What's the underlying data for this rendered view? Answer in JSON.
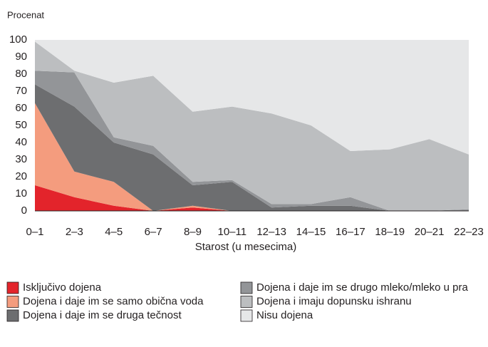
{
  "chart_data": {
    "type": "stacked_area",
    "ylabel": "Procenat",
    "xlabel": "Starost (u mesecima)",
    "categories": [
      "0–1",
      "2–3",
      "4–5",
      "6–7",
      "8–9",
      "10–11",
      "12–13",
      "14–15",
      "16–17",
      "18–19",
      "20–21",
      "22–23"
    ],
    "ylim": [
      0,
      100
    ],
    "yticks": [
      0,
      10,
      20,
      30,
      40,
      50,
      60,
      70,
      80,
      90,
      100
    ],
    "grid": false,
    "series": [
      {
        "name": "Isključivo dojena",
        "color": "#e3242b",
        "values": [
          15,
          8,
          3,
          0,
          2,
          0,
          0,
          0,
          0,
          0,
          0,
          0
        ]
      },
      {
        "name": "Dojena i daje im se samo obična voda",
        "color": "#f49c7e",
        "values": [
          48,
          15,
          14,
          0,
          1,
          0,
          0,
          0,
          0,
          0,
          0,
          0
        ]
      },
      {
        "name": "Dojena i daje im se druga tečnost",
        "color": "#6d6e70",
        "values": [
          11,
          38,
          23,
          33,
          12,
          17,
          2,
          3,
          3,
          0,
          0,
          0
        ]
      },
      {
        "name": "Dojena i daje im se drugo mleko/mleko u pra",
        "color": "#939598",
        "values": [
          8,
          20,
          3,
          5,
          2,
          1,
          2,
          1,
          5,
          0,
          0,
          1
        ]
      },
      {
        "name": "Dojena i imaju dopunsku ishranu",
        "color": "#bcbec0",
        "values": [
          17,
          1,
          32,
          41,
          41,
          43,
          53,
          46,
          27,
          36,
          42,
          32
        ]
      },
      {
        "name": "Nisu dojena",
        "color": "#e6e7e8",
        "values": [
          1,
          18,
          25,
          21,
          42,
          39,
          43,
          50,
          65,
          64,
          58,
          67
        ]
      }
    ]
  }
}
